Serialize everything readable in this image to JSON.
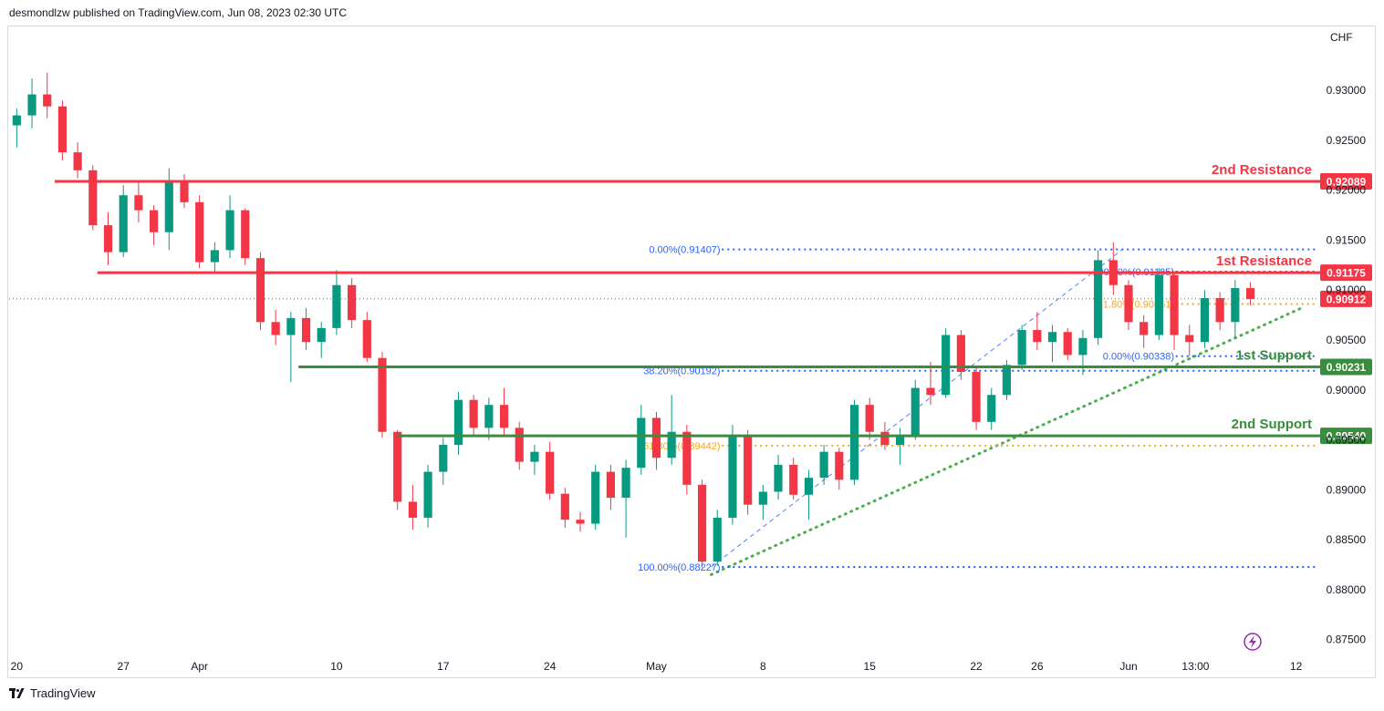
{
  "header": {
    "text": "desmondlzw published on TradingView.com, Jun 08, 2023 02:30 UTC"
  },
  "footer": {
    "brand": "TradingView"
  },
  "chart_data": {
    "type": "candlestick",
    "currency_label": "CHF",
    "ylim": [
      0.8735,
      0.9365
    ],
    "y_ticks": [
      "0.93000",
      "0.92500",
      "0.92000",
      "0.91500",
      "0.91000",
      "0.90500",
      "0.90000",
      "0.89500",
      "0.89000",
      "0.88500",
      "0.88000",
      "0.87500"
    ],
    "x_ticks": [
      {
        "label": "20",
        "t": 0
      },
      {
        "label": "27",
        "t": 7
      },
      {
        "label": "Apr",
        "t": 12
      },
      {
        "label": "10",
        "t": 21
      },
      {
        "label": "17",
        "t": 28
      },
      {
        "label": "24",
        "t": 35
      },
      {
        "label": "May",
        "t": 42
      },
      {
        "label": "8",
        "t": 49
      },
      {
        "label": "15",
        "t": 56
      },
      {
        "label": "22",
        "t": 63
      },
      {
        "label": "26",
        "t": 67
      },
      {
        "label": "Jun",
        "t": 73
      },
      {
        "label": "13:00",
        "t": 77.4
      },
      {
        "label": "12",
        "t": 84
      }
    ],
    "x_range": [
      -0.5,
      85.4
    ],
    "colors": {
      "up": "#089981",
      "down": "#f23645",
      "resistance": "#f23645",
      "support": "#388e3c",
      "fib_blue": "#2962ff",
      "fib_orange": "#f5a623",
      "trend": "#4caf50",
      "price_line": "#131722"
    },
    "levels": [
      {
        "name": "2nd Resistance",
        "value": 0.92089,
        "badge": "0.92089",
        "kind": "resistance",
        "t_start": 2.5
      },
      {
        "name": "1st Resistance",
        "value": 0.91175,
        "badge": "0.91175",
        "kind": "resistance",
        "t_start": 5.3
      },
      {
        "name": "1st Support",
        "value": 0.90231,
        "badge": "0.90231",
        "kind": "support",
        "t_start": 18.5
      },
      {
        "name": "2nd Support",
        "value": 0.8954,
        "badge": "0.89540",
        "kind": "support",
        "t_start": 25
      }
    ],
    "current_price": {
      "value": 0.90912,
      "badge": "0.90912"
    },
    "fib_levels": [
      {
        "label": "0.00%(0.91407)",
        "value": 0.91407,
        "color": "blue",
        "t_label": 46.2,
        "t_start": 46.3
      },
      {
        "label": "38.20%(0.90192)",
        "value": 0.90192,
        "color": "blue",
        "t_label": 46.2,
        "t_start": 46.3
      },
      {
        "label": "61.80%(0.89442)",
        "value": 0.89442,
        "color": "orange",
        "t_label": 46.2,
        "t_start": 46.3
      },
      {
        "label": "100.00%(0.88227)",
        "value": 0.88227,
        "color": "blue",
        "t_label": 46.2,
        "t_start": 46.3
      },
      {
        "label": "100.00%(0.91185)",
        "value": 0.91185,
        "color": "blue",
        "t_label": 76.0,
        "t_start": 76.1
      },
      {
        "label": "61.80%(0.90861)",
        "value": 0.90861,
        "color": "orange",
        "t_label": 76.0,
        "t_start": 76.1
      },
      {
        "label": "0.00%(0.90338)",
        "value": 0.90338,
        "color": "blue",
        "t_label": 76.0,
        "t_start": 76.1
      }
    ],
    "fib_trend": {
      "from": {
        "t": 45.6,
        "v": 0.88227
      },
      "to": {
        "t": 72.6,
        "v": 0.91407
      }
    },
    "trendline": {
      "from": {
        "t": 45.6,
        "v": 0.8815
      },
      "to": {
        "t": 84.5,
        "v": 0.9083
      }
    },
    "candles": [
      {
        "t": 0,
        "o": 0.9265,
        "h": 0.9282,
        "l": 0.9243,
        "c": 0.9275
      },
      {
        "t": 1,
        "o": 0.9275,
        "h": 0.9312,
        "l": 0.9262,
        "c": 0.9296
      },
      {
        "t": 2,
        "o": 0.9296,
        "h": 0.9318,
        "l": 0.9272,
        "c": 0.9284
      },
      {
        "t": 3,
        "o": 0.9284,
        "h": 0.929,
        "l": 0.923,
        "c": 0.9238
      },
      {
        "t": 4,
        "o": 0.9238,
        "h": 0.9248,
        "l": 0.9212,
        "c": 0.922
      },
      {
        "t": 5,
        "o": 0.922,
        "h": 0.9225,
        "l": 0.916,
        "c": 0.9165
      },
      {
        "t": 6,
        "o": 0.9165,
        "h": 0.9178,
        "l": 0.9125,
        "c": 0.9138
      },
      {
        "t": 7,
        "o": 0.9138,
        "h": 0.9205,
        "l": 0.9133,
        "c": 0.9195
      },
      {
        "t": 8,
        "o": 0.9195,
        "h": 0.921,
        "l": 0.9168,
        "c": 0.918
      },
      {
        "t": 9,
        "o": 0.918,
        "h": 0.9185,
        "l": 0.9145,
        "c": 0.9158
      },
      {
        "t": 10,
        "o": 0.9158,
        "h": 0.9222,
        "l": 0.914,
        "c": 0.921
      },
      {
        "t": 11,
        "o": 0.921,
        "h": 0.9216,
        "l": 0.9182,
        "c": 0.9188
      },
      {
        "t": 12,
        "o": 0.9188,
        "h": 0.9195,
        "l": 0.9122,
        "c": 0.9128
      },
      {
        "t": 13,
        "o": 0.9128,
        "h": 0.9148,
        "l": 0.9118,
        "c": 0.914
      },
      {
        "t": 14,
        "o": 0.914,
        "h": 0.9195,
        "l": 0.9132,
        "c": 0.918
      },
      {
        "t": 15,
        "o": 0.918,
        "h": 0.9182,
        "l": 0.9125,
        "c": 0.9132
      },
      {
        "t": 16,
        "o": 0.9132,
        "h": 0.9138,
        "l": 0.906,
        "c": 0.9068
      },
      {
        "t": 17,
        "o": 0.9068,
        "h": 0.908,
        "l": 0.9045,
        "c": 0.9055
      },
      {
        "t": 18,
        "o": 0.9055,
        "h": 0.9078,
        "l": 0.9008,
        "c": 0.9072
      },
      {
        "t": 19,
        "o": 0.9072,
        "h": 0.9082,
        "l": 0.904,
        "c": 0.9048
      },
      {
        "t": 20,
        "o": 0.9048,
        "h": 0.9068,
        "l": 0.9032,
        "c": 0.9062
      },
      {
        "t": 21,
        "o": 0.9062,
        "h": 0.912,
        "l": 0.9055,
        "c": 0.9105
      },
      {
        "t": 22,
        "o": 0.9105,
        "h": 0.9112,
        "l": 0.9062,
        "c": 0.907
      },
      {
        "t": 23,
        "o": 0.907,
        "h": 0.9078,
        "l": 0.9028,
        "c": 0.9032
      },
      {
        "t": 24,
        "o": 0.9032,
        "h": 0.9038,
        "l": 0.8952,
        "c": 0.8958
      },
      {
        "t": 25,
        "o": 0.8958,
        "h": 0.896,
        "l": 0.888,
        "c": 0.8888
      },
      {
        "t": 26,
        "o": 0.8888,
        "h": 0.8905,
        "l": 0.886,
        "c": 0.8872
      },
      {
        "t": 27,
        "o": 0.8872,
        "h": 0.8925,
        "l": 0.8862,
        "c": 0.8918
      },
      {
        "t": 28,
        "o": 0.8918,
        "h": 0.8952,
        "l": 0.8905,
        "c": 0.8945
      },
      {
        "t": 29,
        "o": 0.8945,
        "h": 0.8998,
        "l": 0.8935,
        "c": 0.899
      },
      {
        "t": 30,
        "o": 0.899,
        "h": 0.8995,
        "l": 0.8955,
        "c": 0.8962
      },
      {
        "t": 31,
        "o": 0.8962,
        "h": 0.8992,
        "l": 0.895,
        "c": 0.8985
      },
      {
        "t": 32,
        "o": 0.8985,
        "h": 0.9002,
        "l": 0.8955,
        "c": 0.8962
      },
      {
        "t": 33,
        "o": 0.8962,
        "h": 0.8968,
        "l": 0.892,
        "c": 0.8928
      },
      {
        "t": 34,
        "o": 0.8928,
        "h": 0.8945,
        "l": 0.8915,
        "c": 0.8938
      },
      {
        "t": 35,
        "o": 0.8938,
        "h": 0.8948,
        "l": 0.889,
        "c": 0.8896
      },
      {
        "t": 36,
        "o": 0.8896,
        "h": 0.8902,
        "l": 0.8862,
        "c": 0.887
      },
      {
        "t": 37,
        "o": 0.887,
        "h": 0.8878,
        "l": 0.8858,
        "c": 0.8866
      },
      {
        "t": 38,
        "o": 0.8866,
        "h": 0.8925,
        "l": 0.886,
        "c": 0.8918
      },
      {
        "t": 39,
        "o": 0.8918,
        "h": 0.8925,
        "l": 0.888,
        "c": 0.8892
      },
      {
        "t": 40,
        "o": 0.8892,
        "h": 0.893,
        "l": 0.8852,
        "c": 0.8922
      },
      {
        "t": 41,
        "o": 0.8922,
        "h": 0.8985,
        "l": 0.8915,
        "c": 0.8972
      },
      {
        "t": 42,
        "o": 0.8972,
        "h": 0.8978,
        "l": 0.892,
        "c": 0.8932
      },
      {
        "t": 43,
        "o": 0.8932,
        "h": 0.8995,
        "l": 0.8925,
        "c": 0.8958
      },
      {
        "t": 44,
        "o": 0.8958,
        "h": 0.8965,
        "l": 0.8895,
        "c": 0.8905
      },
      {
        "t": 45,
        "o": 0.8905,
        "h": 0.891,
        "l": 0.8822,
        "c": 0.8828
      },
      {
        "t": 46,
        "o": 0.8828,
        "h": 0.888,
        "l": 0.8824,
        "c": 0.8872
      },
      {
        "t": 47,
        "o": 0.8872,
        "h": 0.8965,
        "l": 0.8865,
        "c": 0.8955
      },
      {
        "t": 48,
        "o": 0.8955,
        "h": 0.896,
        "l": 0.8875,
        "c": 0.8885
      },
      {
        "t": 49,
        "o": 0.8885,
        "h": 0.8905,
        "l": 0.887,
        "c": 0.8898
      },
      {
        "t": 50,
        "o": 0.8898,
        "h": 0.8935,
        "l": 0.889,
        "c": 0.8925
      },
      {
        "t": 51,
        "o": 0.8925,
        "h": 0.8932,
        "l": 0.889,
        "c": 0.8895
      },
      {
        "t": 52,
        "o": 0.8895,
        "h": 0.892,
        "l": 0.887,
        "c": 0.8912
      },
      {
        "t": 53,
        "o": 0.8912,
        "h": 0.8945,
        "l": 0.8905,
        "c": 0.8938
      },
      {
        "t": 54,
        "o": 0.8938,
        "h": 0.8942,
        "l": 0.89,
        "c": 0.891
      },
      {
        "t": 55,
        "o": 0.891,
        "h": 0.899,
        "l": 0.8905,
        "c": 0.8985
      },
      {
        "t": 56,
        "o": 0.8985,
        "h": 0.8992,
        "l": 0.895,
        "c": 0.8958
      },
      {
        "t": 57,
        "o": 0.8958,
        "h": 0.8968,
        "l": 0.894,
        "c": 0.8945
      },
      {
        "t": 58,
        "o": 0.8945,
        "h": 0.8962,
        "l": 0.8925,
        "c": 0.8955
      },
      {
        "t": 59,
        "o": 0.8955,
        "h": 0.901,
        "l": 0.895,
        "c": 0.9002
      },
      {
        "t": 60,
        "o": 0.9002,
        "h": 0.9028,
        "l": 0.8985,
        "c": 0.8995
      },
      {
        "t": 61,
        "o": 0.8995,
        "h": 0.9062,
        "l": 0.8992,
        "c": 0.9055
      },
      {
        "t": 62,
        "o": 0.9055,
        "h": 0.906,
        "l": 0.901,
        "c": 0.9018
      },
      {
        "t": 63,
        "o": 0.9018,
        "h": 0.9022,
        "l": 0.896,
        "c": 0.8968
      },
      {
        "t": 64,
        "o": 0.8968,
        "h": 0.9002,
        "l": 0.896,
        "c": 0.8995
      },
      {
        "t": 65,
        "o": 0.8995,
        "h": 0.903,
        "l": 0.899,
        "c": 0.9025
      },
      {
        "t": 66,
        "o": 0.9025,
        "h": 0.9065,
        "l": 0.902,
        "c": 0.906
      },
      {
        "t": 67,
        "o": 0.906,
        "h": 0.9078,
        "l": 0.904,
        "c": 0.9048
      },
      {
        "t": 68,
        "o": 0.9048,
        "h": 0.9065,
        "l": 0.9028,
        "c": 0.9058
      },
      {
        "t": 69,
        "o": 0.9058,
        "h": 0.9062,
        "l": 0.903,
        "c": 0.9035
      },
      {
        "t": 70,
        "o": 0.9035,
        "h": 0.906,
        "l": 0.9015,
        "c": 0.9052
      },
      {
        "t": 71,
        "o": 0.9052,
        "h": 0.914,
        "l": 0.9045,
        "c": 0.913
      },
      {
        "t": 72,
        "o": 0.913,
        "h": 0.9148,
        "l": 0.9095,
        "c": 0.9105
      },
      {
        "t": 73,
        "o": 0.9105,
        "h": 0.911,
        "l": 0.906,
        "c": 0.9068
      },
      {
        "t": 74,
        "o": 0.9068,
        "h": 0.9075,
        "l": 0.9042,
        "c": 0.9055
      },
      {
        "t": 75,
        "o": 0.9055,
        "h": 0.9122,
        "l": 0.905,
        "c": 0.9115
      },
      {
        "t": 76,
        "o": 0.9115,
        "h": 0.9118,
        "l": 0.904,
        "c": 0.9055
      },
      {
        "t": 77,
        "o": 0.9055,
        "h": 0.9065,
        "l": 0.9034,
        "c": 0.9048
      },
      {
        "t": 78,
        "o": 0.9048,
        "h": 0.91,
        "l": 0.9042,
        "c": 0.9092
      },
      {
        "t": 79,
        "o": 0.9092,
        "h": 0.9098,
        "l": 0.906,
        "c": 0.9068
      },
      {
        "t": 80,
        "o": 0.9068,
        "h": 0.911,
        "l": 0.9052,
        "c": 0.9102
      },
      {
        "t": 81,
        "o": 0.9102,
        "h": 0.9108,
        "l": 0.9085,
        "c": 0.9091
      }
    ]
  }
}
